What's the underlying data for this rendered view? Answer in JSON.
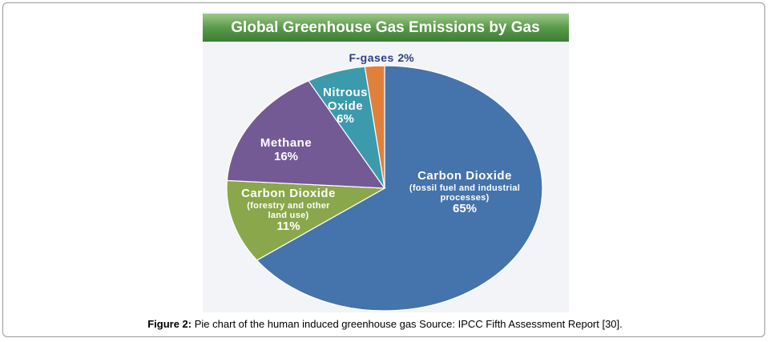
{
  "chart_data": {
    "type": "pie",
    "title": "Global Greenhouse Gas Emissions by Gas",
    "categories": [
      "Carbon Dioxide",
      "Carbon Dioxide",
      "Methane",
      "Nitrous Oxide",
      "F-gases"
    ],
    "descriptions": [
      "(fossil fuel and industrial processes)",
      "(forestry and other land use)",
      null,
      null,
      null
    ],
    "values": [
      65,
      11,
      16,
      6,
      2
    ],
    "value_labels": [
      "65%",
      "11%",
      "16%",
      "6%",
      "2%"
    ],
    "colors": [
      "#4573ab",
      "#8aa74b",
      "#735a94",
      "#3c9aad",
      "#e0803a"
    ]
  },
  "figure_caption": {
    "label": "Figure 2:",
    "text": "Pie chart of the human induced greenhouse gas Source: IPCC Fifth Assessment Report [30]."
  }
}
